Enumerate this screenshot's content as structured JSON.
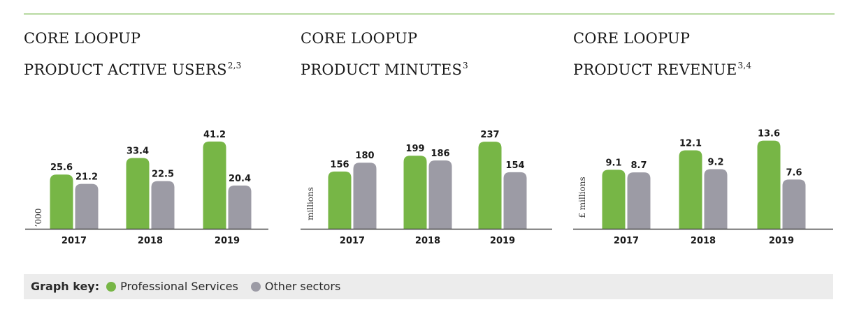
{
  "colors": {
    "green": "#77b646",
    "grey": "#9c9ba5",
    "axis": "#444444",
    "rule": "#b7d9a1"
  },
  "legend": {
    "title": "Graph key:",
    "items": [
      {
        "label": "Professional Services",
        "color": "#77b646"
      },
      {
        "label": "Other sectors",
        "color": "#9c9ba5"
      }
    ]
  },
  "chart_data": [
    {
      "type": "bar",
      "title_line1": "CORE LOOPUP",
      "title_line2": "PRODUCT ACTIVE USERS",
      "title_sup": "2,3",
      "ylabel": "’000",
      "categories": [
        "2017",
        "2018",
        "2019"
      ],
      "series": [
        {
          "name": "Professional Services",
          "values": [
            25.6,
            33.4,
            41.2
          ]
        },
        {
          "name": "Other sectors",
          "values": [
            21.2,
            22.5,
            20.4
          ]
        }
      ],
      "labels": [
        [
          "25.6",
          "33.4",
          "41.2"
        ],
        [
          "21.2",
          "22.5",
          "20.4"
        ]
      ],
      "ylim": [
        0,
        52
      ]
    },
    {
      "type": "bar",
      "title_line1": "CORE LOOPUP",
      "title_line2": "PRODUCT MINUTES",
      "title_sup": "3",
      "ylabel": "millions",
      "categories": [
        "2017",
        "2018",
        "2019"
      ],
      "series": [
        {
          "name": "Professional Services",
          "values": [
            156,
            199,
            237
          ]
        },
        {
          "name": "Other sectors",
          "values": [
            180,
            186,
            154
          ]
        }
      ],
      "labels": [
        [
          "156",
          "199",
          "237"
        ],
        [
          "180",
          "186",
          "154"
        ]
      ],
      "ylim": [
        0,
        300
      ]
    },
    {
      "type": "bar",
      "title_line1": "CORE LOOPUP",
      "title_line2": "PRODUCT REVENUE",
      "title_sup": "3,4",
      "ylabel": "£ millions",
      "categories": [
        "2017",
        "2018",
        "2019"
      ],
      "series": [
        {
          "name": "Professional Services",
          "values": [
            9.1,
            12.1,
            13.6
          ]
        },
        {
          "name": "Other sectors",
          "values": [
            8.7,
            9.2,
            7.6
          ]
        }
      ],
      "labels": [
        [
          "9.1",
          "12.1",
          "13.6"
        ],
        [
          "8.7",
          "9.2",
          "7.6"
        ]
      ],
      "ylim": [
        0,
        17
      ]
    }
  ]
}
